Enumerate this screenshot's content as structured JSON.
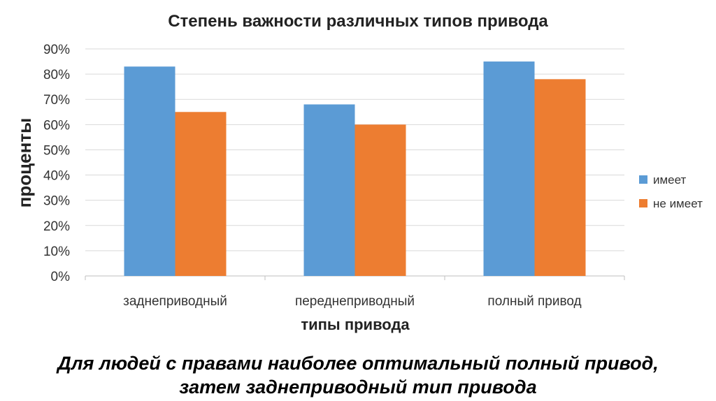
{
  "chart_data": {
    "type": "bar",
    "title": "Степень важности  различных типов привода",
    "xlabel": "типы привода",
    "ylabel": "проценты",
    "categories": [
      "заднеприводный",
      "переднеприводный",
      "полный привод"
    ],
    "series": [
      {
        "name": "имеет",
        "values": [
          83,
          68,
          85
        ],
        "color": "#5B9BD5"
      },
      {
        "name": "не имеет",
        "values": [
          65,
          60,
          78
        ],
        "color": "#ED7D31"
      }
    ],
    "ylim": [
      0,
      90
    ],
    "yticks": [
      0,
      10,
      20,
      30,
      40,
      50,
      60,
      70,
      80,
      90
    ],
    "ytick_format": "percent",
    "grid": true,
    "legend_position": "right"
  },
  "caption": {
    "line1": "Для людей с правами наиболее оптимальный полный привод,",
    "line2": "затем заднеприводный тип привода"
  }
}
